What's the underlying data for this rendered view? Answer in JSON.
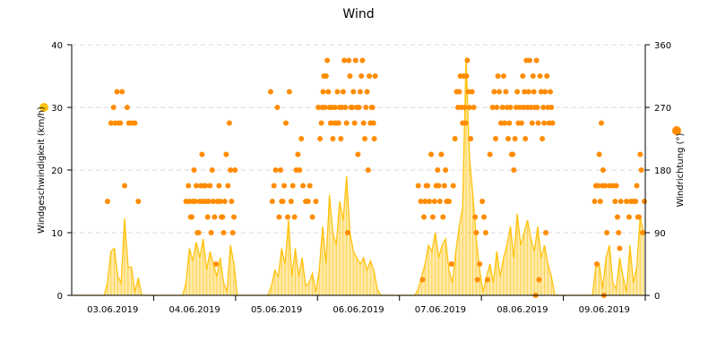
{
  "chart_data": {
    "type": "line+scatter",
    "title": "Wind",
    "ylabel_left": "Windgeschwindigkeit (km/h)",
    "ylabel_right": "Windrichtung (°)",
    "ylim_left": [
      0,
      40
    ],
    "ylim_right": [
      0,
      360
    ],
    "yticks_left": [
      "0",
      "10",
      "20",
      "30",
      "40"
    ],
    "yticks_right": [
      "0",
      "90",
      "180",
      "270",
      "360"
    ],
    "grid": true,
    "colors": {
      "speed": "#FFC20E",
      "direction": "#FF8C00"
    },
    "series": [
      {
        "key": "speed",
        "type": "line",
        "axis": "left"
      },
      {
        "key": "direction",
        "type": "scatter",
        "axis": "right"
      }
    ],
    "days": [
      {
        "date": "03.06.2019",
        "speed": [
          0,
          0,
          0,
          0,
          0,
          0,
          0,
          0,
          0,
          0,
          2,
          7,
          7.5,
          3,
          2,
          12.3,
          4.5,
          4.5,
          0.5,
          2.8,
          0,
          0,
          0,
          0
        ],
        "direction": [
          [],
          [],
          [],
          [],
          [],
          [],
          [],
          [],
          [],
          [],
          [
            135
          ],
          [
            247.5
          ],
          [
            270,
            247.5
          ],
          [
            292.5,
            247.5
          ],
          [
            247.5,
            292.5
          ],
          [
            157.5
          ],
          [
            270,
            247.5
          ],
          [
            247.5
          ],
          [
            247.5
          ],
          [
            135
          ],
          [],
          [],
          [],
          []
        ]
      },
      {
        "date": "04.06.2019",
        "speed": [
          0,
          0,
          0,
          0,
          0,
          0,
          0,
          0,
          0,
          2,
          7.5,
          5.5,
          8.5,
          6,
          9,
          4,
          7,
          5,
          3,
          6,
          2,
          0.5,
          8,
          5
        ],
        "direction": [
          [],
          [],
          [],
          [],
          [],
          [],
          [],
          [],
          [],
          [
            135
          ],
          [
            157.5,
            135,
            112.5
          ],
          [
            112.5,
            135,
            180
          ],
          [
            135,
            157.5,
            90
          ],
          [
            90,
            135,
            157.5
          ],
          [
            202.5,
            135,
            157.5
          ],
          [
            157.5,
            135,
            112.5
          ],
          [
            135,
            157.5,
            90
          ],
          [
            180,
            135,
            112.5
          ],
          [
            45,
            135
          ],
          [
            157.5,
            135,
            112.5
          ],
          [
            112.5,
            90,
            135
          ],
          [
            202.5,
            157.5
          ],
          [
            247.5,
            180,
            135
          ],
          [
            90,
            112.5,
            180
          ]
        ]
      },
      {
        "date": "05.06.2019",
        "speed": [
          0,
          0,
          0,
          0,
          0,
          0,
          0,
          0,
          0,
          0,
          1.5,
          4,
          3,
          7.5,
          5,
          12,
          3,
          7.5,
          3,
          6,
          1.5,
          2,
          3.5,
          0.5
        ],
        "direction": [
          [],
          [],
          [],
          [],
          [],
          [],
          [],
          [],
          [],
          [],
          [
            292.5,
            135
          ],
          [
            157.5,
            180
          ],
          [
            270,
            112.5
          ],
          [
            180,
            135,
            135
          ],
          [
            157.5,
            247.5
          ],
          [
            112.5,
            292.5
          ],
          [
            135,
            157.5
          ],
          [
            112.5,
            180
          ],
          [
            202.5,
            180
          ],
          [
            225,
            157.5
          ],
          [
            135
          ],
          [
            135,
            157.5
          ],
          [
            112.5
          ],
          [
            135
          ]
        ]
      },
      {
        "date": "06.06.2019",
        "speed": [
          4,
          11,
          5,
          16,
          10,
          8,
          15,
          12,
          19,
          10,
          7,
          6,
          5,
          6,
          4,
          5.5,
          4,
          1,
          0,
          0,
          0,
          0,
          0,
          0
        ],
        "direction": [
          [
            270,
            225
          ],
          [
            247.5,
            270,
            292.5,
            315
          ],
          [
            270,
            315,
            337.5
          ],
          [
            292.5,
            270,
            247.5
          ],
          [
            270,
            225,
            247.5
          ],
          [
            270,
            247.5,
            292.5
          ],
          [
            247.5,
            270,
            225
          ],
          [
            270,
            292.5,
            337.5
          ],
          [
            270,
            247.5,
            90
          ],
          [
            337.5,
            315,
            270
          ],
          [
            270,
            292.5,
            247.5
          ],
          [
            337.5,
            270,
            202.5
          ],
          [
            270,
            292.5,
            315
          ],
          [
            337.5,
            247.5,
            225
          ],
          [
            270,
            292.5,
            180
          ],
          [
            315,
            247.5,
            270
          ],
          [
            270,
            247.5,
            225,
            315
          ],
          [],
          [],
          [],
          [],
          [],
          [],
          []
        ]
      },
      {
        "date": "07.06.2019",
        "speed": [
          0,
          0,
          0,
          0,
          0,
          1,
          3,
          5,
          8,
          7,
          10,
          6,
          8,
          9,
          4,
          2,
          7,
          11,
          14,
          38,
          22,
          16,
          9,
          4
        ],
        "direction": [
          [],
          [],
          [],
          [],
          [],
          [
            157.5
          ],
          [
            135,
            22.5
          ],
          [
            112.5,
            135,
            157.5
          ],
          [
            157.5,
            135
          ],
          [
            202.5,
            112.5
          ],
          [
            135,
            157.5
          ],
          [
            180,
            157.5,
            135
          ],
          [
            202.5,
            112.5
          ],
          [
            157.5,
            180,
            135
          ],
          [
            135
          ],
          [
            45,
            157.5
          ],
          [
            225,
            292.5
          ],
          [
            270,
            292.5,
            315
          ],
          [
            270,
            247.5,
            315
          ],
          [
            270,
            247.5,
            315,
            337.5
          ],
          [
            292.5,
            270,
            225
          ],
          [
            292.5,
            270
          ],
          [
            112.5,
            90,
            22.5
          ],
          [
            45
          ]
        ]
      },
      {
        "date": "08.06.2019",
        "speed": [
          0.5,
          3,
          5,
          2,
          7,
          3,
          6,
          8,
          11,
          6,
          13,
          8,
          10,
          12,
          9,
          7,
          11,
          6,
          8,
          5,
          3,
          0,
          0,
          0
        ],
        "direction": [
          [
            135,
            112.5
          ],
          [
            90,
            22.5
          ],
          [
            202.5
          ],
          [
            270,
            292.5
          ],
          [
            225,
            270,
            315
          ],
          [
            292.5,
            247.5
          ],
          [
            270,
            315,
            247.5
          ],
          [
            292.5,
            270,
            225
          ],
          [
            247.5,
            270,
            202.5
          ],
          [
            202.5,
            180,
            225
          ],
          [
            270,
            292.5,
            247.5
          ],
          [
            270,
            247.5
          ],
          [
            315,
            270,
            292.5,
            225
          ],
          [
            337.5,
            270,
            292.5
          ],
          [
            337.5,
            270,
            247.5
          ],
          [
            315,
            292.5,
            270,
            0
          ],
          [
            337.5,
            270,
            247.5,
            22.5
          ],
          [
            315,
            292.5,
            225
          ],
          [
            270,
            247.5,
            292.5,
            90
          ],
          [
            315,
            270,
            247.5
          ],
          [
            292.5,
            270,
            247.5
          ],
          [],
          [],
          []
        ]
      },
      {
        "date": "09.06.2019",
        "speed": [
          0,
          0,
          0,
          0,
          0,
          0,
          0,
          0,
          0,
          4.5,
          5,
          1,
          6,
          8,
          2,
          1,
          6,
          3,
          0.5,
          8,
          2,
          4.5,
          12.5,
          10
        ],
        "direction": [
          [],
          [],
          [],
          [],
          [],
          [],
          [],
          [],
          [],
          [
            135,
            157.5,
            45
          ],
          [
            157.5,
            202.5,
            135
          ],
          [
            247.5,
            157.5,
            180,
            0
          ],
          [
            157.5,
            90
          ],
          [
            157.5
          ],
          [
            157.5
          ],
          [
            135,
            157.5,
            112.5
          ],
          [
            90,
            67.5,
            135
          ],
          [],
          [
            135
          ],
          [
            112.5,
            135
          ],
          [
            135
          ],
          [
            135,
            157.5,
            112.5
          ],
          [
            112.5,
            202.5,
            180
          ],
          [
            90,
            135
          ]
        ]
      }
    ]
  }
}
